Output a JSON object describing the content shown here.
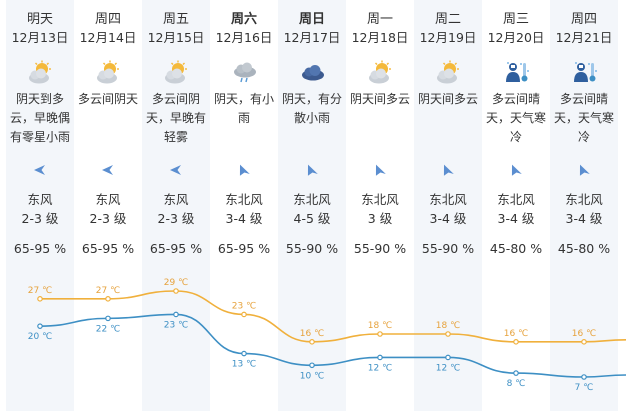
{
  "days": [
    {
      "day": "明天",
      "date": "12月13日",
      "icon": "cloudy-sun-icon",
      "desc": "阴天到多云，早晚偶有零星小雨",
      "wind_dir": "东风",
      "wind_level": "2-3 级",
      "humidity": "65-95 %",
      "weekend": false
    },
    {
      "day": "周四",
      "date": "12月14日",
      "icon": "cloudy-sun-icon",
      "desc": "多云间阴天",
      "wind_dir": "东风",
      "wind_level": "2-3 级",
      "humidity": "65-95 %",
      "weekend": false
    },
    {
      "day": "周五",
      "date": "12月15日",
      "icon": "cloudy-sun-icon",
      "desc": "多云间阴天，早晚有轻雾",
      "wind_dir": "东风",
      "wind_level": "2-3 级",
      "humidity": "65-95 %",
      "weekend": false
    },
    {
      "day": "周六",
      "date": "12月16日",
      "icon": "rain-cloud-icon",
      "desc": "阴天，有小雨",
      "wind_dir": "东北风",
      "wind_level": "3-4 级",
      "humidity": "65-95 %",
      "weekend": true
    },
    {
      "day": "周日",
      "date": "12月17日",
      "icon": "dark-cloud-icon",
      "desc": "阴天，有分散小雨",
      "wind_dir": "东北风",
      "wind_level": "4-5 级",
      "humidity": "55-90 %",
      "weekend": true
    },
    {
      "day": "周一",
      "date": "12月18日",
      "icon": "cloudy-sun-icon",
      "desc": "阴天间多云",
      "wind_dir": "东北风",
      "wind_level": "3 级",
      "humidity": "55-90 %",
      "weekend": false
    },
    {
      "day": "周二",
      "date": "12月19日",
      "icon": "cloudy-sun-icon",
      "desc": "阴天间多云",
      "wind_dir": "东北风",
      "wind_level": "3-4 级",
      "humidity": "55-90 %",
      "weekend": false
    },
    {
      "day": "周三",
      "date": "12月20日",
      "icon": "cold-warning-icon",
      "desc": "多云间晴天，天气寒冷",
      "wind_dir": "东北风",
      "wind_level": "3-4 级",
      "humidity": "45-80 %",
      "weekend": false
    },
    {
      "day": "周四",
      "date": "12月21日",
      "icon": "cold-warning-icon",
      "desc": "多云间晴天，天气寒冷",
      "wind_dir": "东北风",
      "wind_level": "3-4 级",
      "humidity": "45-80 %",
      "weekend": false
    }
  ],
  "temps": {
    "high": [
      27,
      27,
      29,
      23,
      16,
      18,
      18,
      16,
      16
    ],
    "low": [
      20,
      22,
      23,
      13,
      10,
      12,
      12,
      8,
      7
    ],
    "unit": "℃"
  },
  "colors": {
    "high_line": "#f0b03c",
    "low_line": "#3d8fc4",
    "alt_column": "#f3f6fa"
  }
}
